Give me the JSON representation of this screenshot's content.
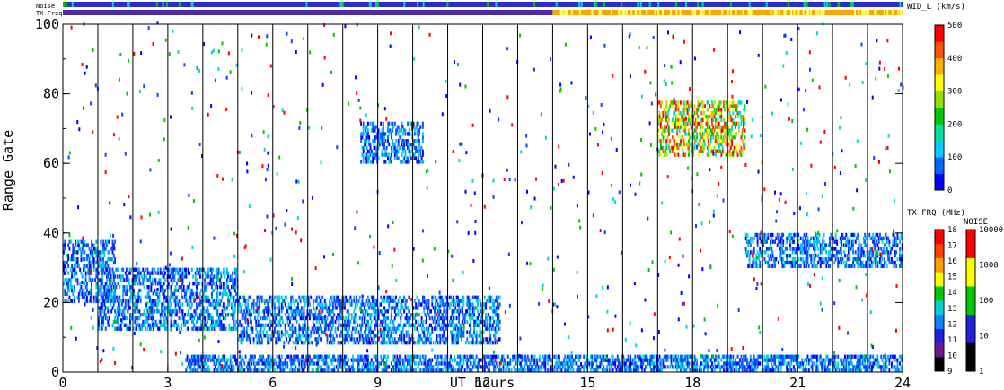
{
  "chart_data": {
    "type": "heatmap",
    "xlabel": "UT hours",
    "ylabel": "Range Gate",
    "xlim": [
      0,
      24
    ],
    "ylim": [
      0,
      100
    ],
    "x_ticks": [
      0,
      3,
      6,
      9,
      12,
      15,
      18,
      21,
      24
    ],
    "y_ticks": [
      0,
      20,
      40,
      60,
      80,
      100
    ],
    "grid": "vertical lines each hour",
    "top_bars": [
      {
        "label": "Noise",
        "segments": [
          {
            "from": 0,
            "to": 24,
            "color": "#2b2bd6"
          }
        ]
      },
      {
        "label": "TX Freq",
        "segments": [
          {
            "from": 0,
            "to": 14,
            "color": "#4a2aa8"
          },
          {
            "from": 14,
            "to": 24,
            "color": "#ffa500"
          }
        ]
      }
    ],
    "colorbars": [
      {
        "title": "WID_L (km/s)",
        "ticks": [
          "500",
          "400",
          "300",
          "200",
          "100",
          "0"
        ],
        "range": [
          0,
          500
        ],
        "colors": [
          "#0000ff",
          "#0066ff",
          "#00ccff",
          "#00e0a0",
          "#00c800",
          "#90e000",
          "#ffff00",
          "#ffb000",
          "#ff5000",
          "#ff0000"
        ]
      },
      {
        "title": "TX FRQ (MHz)",
        "ticks": [
          "18",
          "17",
          "16",
          "15",
          "14",
          "13",
          "12",
          "11",
          "10",
          "9"
        ],
        "colors": [
          "#000000",
          "#6a1a8a",
          "#2020e0",
          "#1080ff",
          "#00d0d0",
          "#00c800",
          "#ffff00",
          "#ffa000",
          "#ff4000",
          "#ff0000"
        ]
      },
      {
        "title": "NOISE",
        "ticks": [
          "10000",
          "1000",
          "100",
          "10",
          "1"
        ],
        "colors": [
          "#000000",
          "#2020e0",
          "#00c800",
          "#ffff00",
          "#ff0000"
        ]
      }
    ],
    "regions": [
      {
        "t0": 0,
        "t1": 1.5,
        "g0": 20,
        "g1": 38,
        "level": "low",
        "note": "dense echoes near range gate 25"
      },
      {
        "t0": 1.0,
        "t1": 5.0,
        "g0": 12,
        "g1": 30,
        "level": "low",
        "note": "descending band"
      },
      {
        "t0": 5.0,
        "t1": 12.5,
        "g0": 8,
        "g1": 22,
        "level": "low",
        "note": "descending band continued"
      },
      {
        "t0": 8.5,
        "t1": 10.3,
        "g0": 60,
        "g1": 72,
        "level": "low",
        "note": "patch near gate 66"
      },
      {
        "t0": 17.0,
        "t1": 19.5,
        "g0": 62,
        "g1": 78,
        "level": "high",
        "note": "high width patch near gate 70"
      },
      {
        "t0": 19.5,
        "t1": 24,
        "g0": 30,
        "g1": 40,
        "level": "low",
        "note": "band near gate 35"
      },
      {
        "t0": 3.5,
        "t1": 24,
        "g0": 0,
        "g1": 5,
        "level": "low",
        "note": "near-range ground scatter"
      }
    ]
  }
}
